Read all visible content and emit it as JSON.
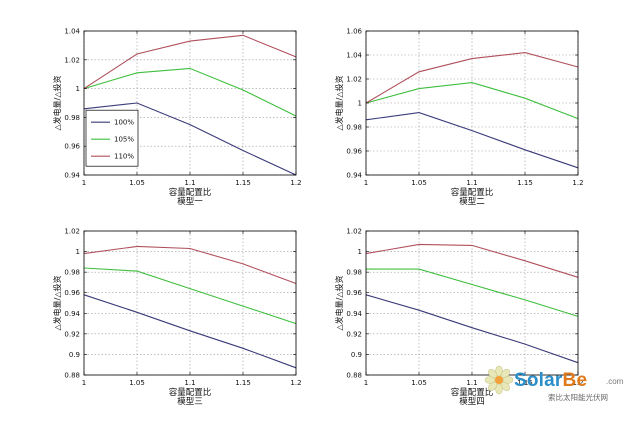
{
  "colors": {
    "100%": "#3b3b7a",
    "105%": "#3fbf3f",
    "110%": "#b0505c"
  },
  "watermark": {
    "brand_solar": "Solar",
    "brand_be": "Be",
    "domain": ".com",
    "subtitle": "索比太阳能光伏网"
  },
  "chart_data": [
    {
      "type": "line",
      "xlabel": "容量配置比",
      "subtitle": "模型一",
      "ylabel": "△发电量/△投资",
      "x": [
        1,
        1.05,
        1.1,
        1.15,
        1.2
      ],
      "xticks": [
        "1",
        "1.05",
        "1.1",
        "1.15",
        "1.2"
      ],
      "ylim": [
        0.94,
        1.04
      ],
      "yticks": [
        "0.94",
        "0.96",
        "0.98",
        "1",
        "1.02",
        "1.04"
      ],
      "grid": true,
      "legend": "left",
      "series": [
        {
          "name": "100%",
          "color_key": "100%",
          "values": [
            0.986,
            0.99,
            0.975,
            0.957,
            0.94
          ]
        },
        {
          "name": "105%",
          "color_key": "105%",
          "values": [
            1.0,
            1.011,
            1.014,
            0.999,
            0.981
          ]
        },
        {
          "name": "110%",
          "color_key": "110%",
          "values": [
            1.0,
            1.024,
            1.033,
            1.037,
            1.022
          ]
        }
      ]
    },
    {
      "type": "line",
      "xlabel": "容量配置比",
      "subtitle": "模型二",
      "ylabel": "△发电量/△投资",
      "x": [
        1,
        1.05,
        1.1,
        1.15,
        1.2
      ],
      "xticks": [
        "1",
        "1.05",
        "1.1",
        "1.15",
        "1.2"
      ],
      "ylim": [
        0.94,
        1.06
      ],
      "yticks": [
        "0.94",
        "0.96",
        "0.98",
        "1",
        "1.02",
        "1.04",
        "1.06"
      ],
      "grid": true,
      "series": [
        {
          "name": "100%",
          "color_key": "100%",
          "values": [
            0.986,
            0.992,
            0.977,
            0.961,
            0.946
          ]
        },
        {
          "name": "105%",
          "color_key": "105%",
          "values": [
            1.0,
            1.012,
            1.017,
            1.004,
            0.987
          ]
        },
        {
          "name": "110%",
          "color_key": "110%",
          "values": [
            1.0,
            1.026,
            1.037,
            1.042,
            1.03
          ]
        }
      ]
    },
    {
      "type": "line",
      "xlabel": "容量配置比",
      "subtitle": "模型三",
      "ylabel": "△发电量/△投资",
      "x": [
        1,
        1.05,
        1.1,
        1.15,
        1.2
      ],
      "xticks": [
        "1",
        "1.05",
        "1.1",
        "1.15",
        "1.2"
      ],
      "ylim": [
        0.88,
        1.02
      ],
      "yticks": [
        "0.88",
        "0.9",
        "0.92",
        "0.94",
        "0.96",
        "0.98",
        "1",
        "1.02"
      ],
      "grid": true,
      "series": [
        {
          "name": "100%",
          "color_key": "100%",
          "values": [
            0.958,
            0.941,
            0.923,
            0.906,
            0.887
          ]
        },
        {
          "name": "105%",
          "color_key": "105%",
          "values": [
            0.984,
            0.981,
            0.964,
            0.947,
            0.93
          ]
        },
        {
          "name": "110%",
          "color_key": "110%",
          "values": [
            0.998,
            1.005,
            1.003,
            0.988,
            0.969
          ]
        }
      ]
    },
    {
      "type": "line",
      "xlabel": "容量配置比",
      "subtitle": "模型四",
      "ylabel": "△发电量/△投资",
      "x": [
        1,
        1.05,
        1.1,
        1.15,
        1.2
      ],
      "xticks": [
        "1",
        "1.05",
        "1.1",
        "1.15",
        "1.2"
      ],
      "ylim": [
        0.88,
        1.02
      ],
      "yticks": [
        "0.88",
        "0.9",
        "0.92",
        "0.94",
        "0.96",
        "0.98",
        "1",
        "1.02"
      ],
      "grid": true,
      "series": [
        {
          "name": "100%",
          "color_key": "100%",
          "values": [
            0.958,
            0.943,
            0.926,
            0.91,
            0.892
          ]
        },
        {
          "name": "105%",
          "color_key": "105%",
          "values": [
            0.983,
            0.983,
            0.968,
            0.953,
            0.937
          ]
        },
        {
          "name": "110%",
          "color_key": "110%",
          "values": [
            0.998,
            1.007,
            1.006,
            0.991,
            0.975
          ]
        }
      ]
    }
  ]
}
